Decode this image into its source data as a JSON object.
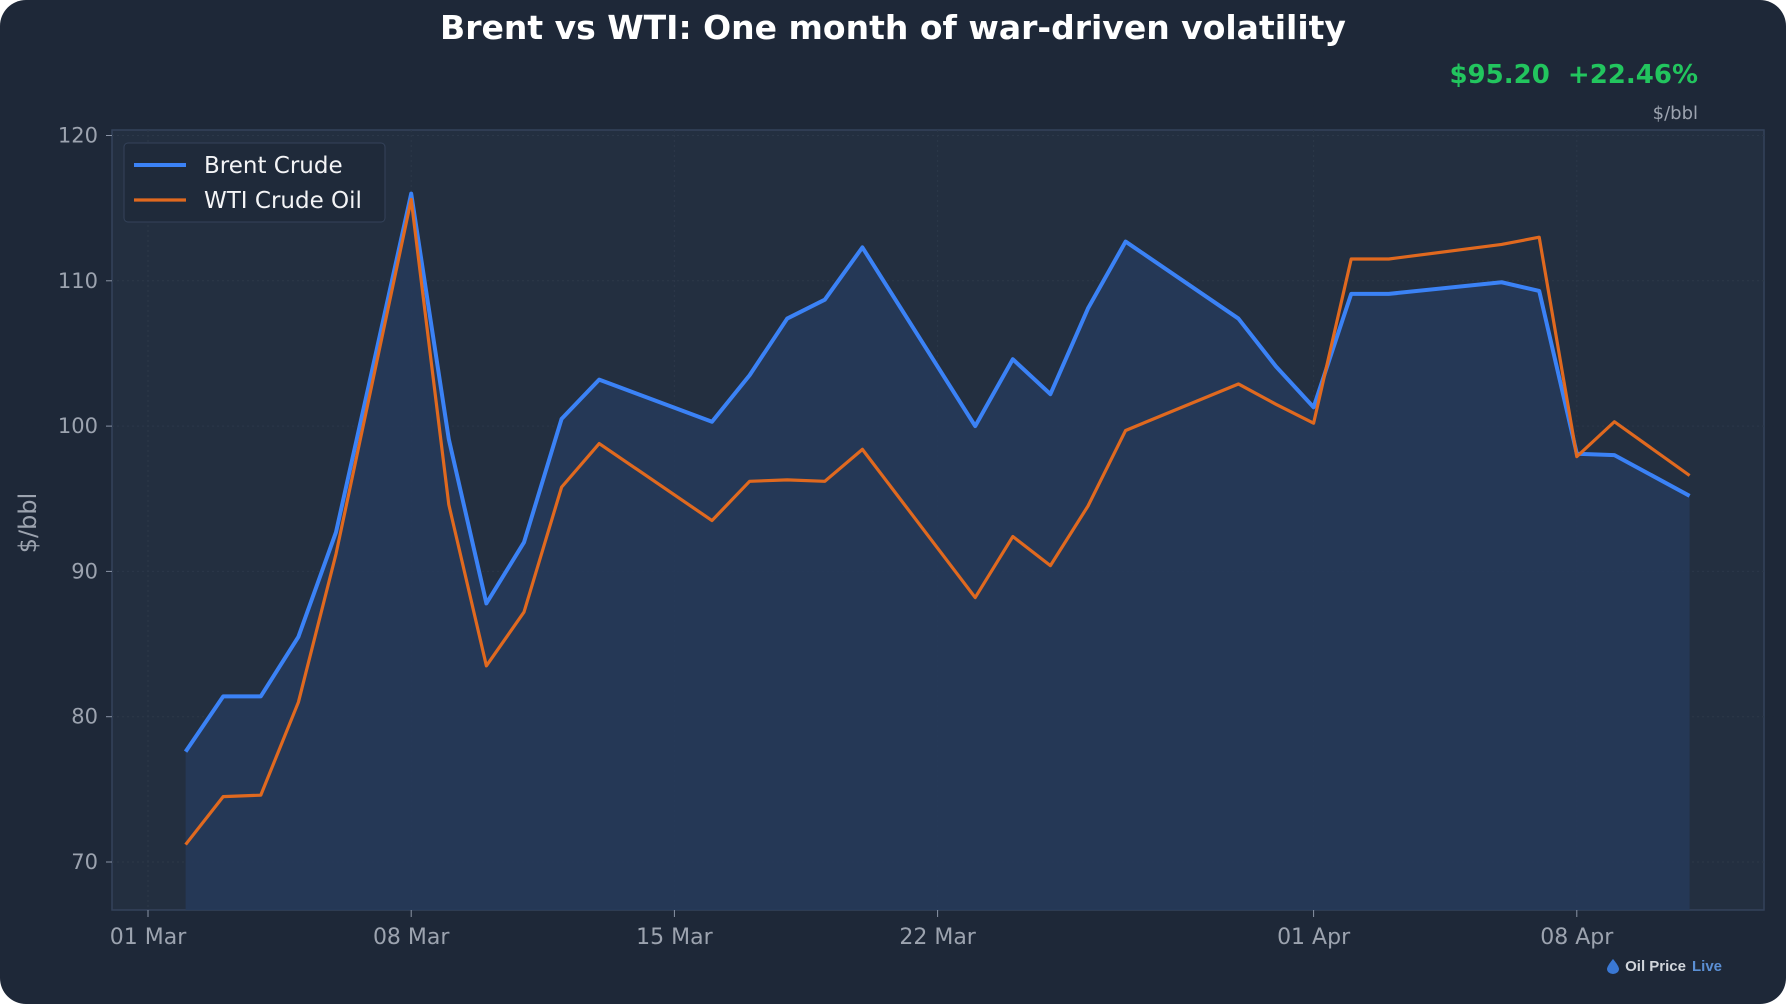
{
  "header": {
    "price": "$95.20",
    "change": "+22.46%",
    "unit": "$/bbl"
  },
  "brand": {
    "name": "Oil Price",
    "suffix": "Live",
    "icon": "oil-drop-icon"
  },
  "colors": {
    "brent": "#3b82f6",
    "wti": "#e0691f",
    "positive": "#22c55e"
  },
  "chart_data": {
    "type": "line",
    "title": "Brent vs WTI: One month of war-driven volatility",
    "xlabel": "",
    "ylabel": "$/bbl",
    "ylim": [
      67,
      120.5
    ],
    "yticks": [
      70,
      80,
      90,
      100,
      110,
      120
    ],
    "xticks": [
      {
        "day": 0,
        "label": "01 Mar"
      },
      {
        "day": 7,
        "label": "08 Mar"
      },
      {
        "day": 14,
        "label": "15 Mar"
      },
      {
        "day": 21,
        "label": "22 Mar"
      },
      {
        "day": 31,
        "label": "01 Apr"
      },
      {
        "day": 38,
        "label": "08 Apr"
      }
    ],
    "grid": true,
    "legend_position": "top-left",
    "x_days_since_mar1": [
      1,
      2,
      3,
      4,
      5,
      6,
      7,
      8,
      9,
      10,
      11,
      12,
      15,
      16,
      17,
      18,
      19,
      22,
      23,
      24,
      25,
      26,
      29,
      30,
      31,
      32,
      33,
      36,
      37,
      38,
      39,
      41
    ],
    "series": [
      {
        "name": "Brent Crude",
        "values": [
          77.6,
          81.4,
          81.4,
          85.5,
          92.7,
          104.3,
          116.0,
          99.1,
          87.8,
          92.0,
          100.5,
          103.2,
          100.3,
          103.5,
          107.4,
          108.7,
          112.3,
          100.0,
          104.6,
          102.2,
          108.1,
          112.7,
          107.4,
          104.1,
          101.3,
          109.1,
          109.1,
          109.9,
          109.3,
          98.1,
          98.0,
          95.2
        ]
      },
      {
        "name": "WTI Crude Oil",
        "values": [
          71.2,
          74.5,
          74.6,
          81.0,
          91.2,
          103.4,
          115.6,
          94.6,
          83.5,
          87.2,
          95.8,
          98.8,
          93.5,
          96.2,
          96.3,
          96.2,
          98.4,
          88.2,
          92.4,
          90.4,
          94.5,
          99.7,
          102.9,
          101.5,
          100.2,
          111.5,
          111.5,
          112.5,
          113.0,
          97.9,
          100.3,
          96.6
        ]
      }
    ]
  }
}
